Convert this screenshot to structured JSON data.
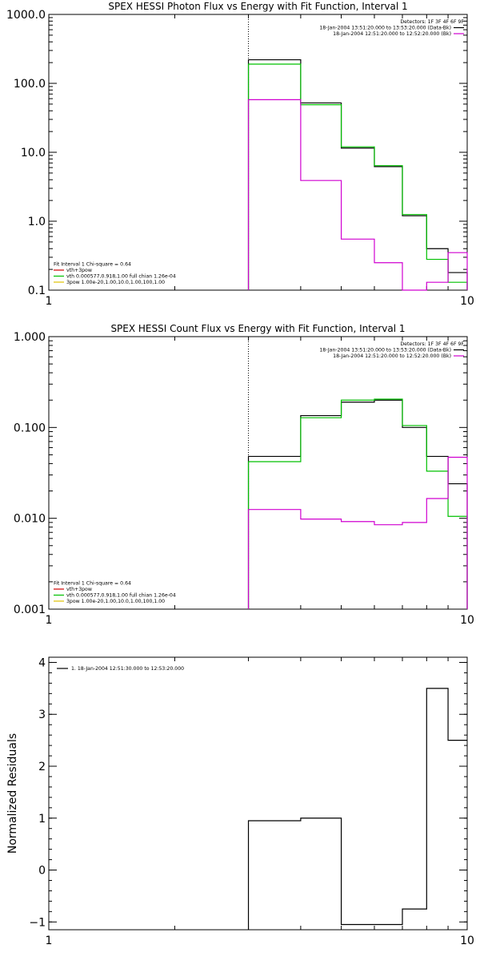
{
  "chart_data": [
    {
      "type": "line",
      "title": "SPEX HESSI Photon Flux vs Energy with Fit Function, Interval 1",
      "xlabel": "",
      "ylabel": "",
      "x_scale": "log",
      "y_scale": "log",
      "xlim": [
        1,
        10
      ],
      "ylim": [
        0.1,
        1000
      ],
      "x_ticks": [
        {
          "v": 1,
          "label": "1"
        },
        {
          "v": 10,
          "label": "10"
        }
      ],
      "y_ticks": [
        {
          "v": 0.1,
          "label": "0.1"
        },
        {
          "v": 1,
          "label": "1.0"
        },
        {
          "v": 10,
          "label": "10.0"
        },
        {
          "v": 100,
          "label": "100.0"
        },
        {
          "v": 1000,
          "label": "1000.0"
        }
      ],
      "marker_x": 3.0,
      "bin_edges": [
        3.0,
        4.0,
        5.0,
        6.0,
        7.0,
        8.0,
        9.0,
        10.0
      ],
      "series": [
        {
          "color": "#000000",
          "values": [
            220,
            52,
            11.5,
            6.2,
            1.2,
            0.4,
            0.18
          ]
        },
        {
          "color": "#00c000",
          "values": [
            190,
            49,
            12,
            6.4,
            1.25,
            0.28,
            0.13
          ]
        },
        {
          "color": "#d000d0",
          "values": [
            58,
            3.9,
            0.55,
            0.25,
            0.1,
            0.13,
            0.35
          ]
        }
      ],
      "legend_top": {
        "lines": [
          {
            "text": "Detectors: 1F 3F 4F 6F 9F",
            "color": null
          },
          {
            "text": "18-Jan-2004 13:51:20.000 to 13:53:20.000 (Data-Bk)",
            "color": "#000000"
          },
          {
            "text": "18-Jan-2004 12:51:20.000 to 12:52:20.000 (Bk)",
            "color": "#d000d0"
          }
        ]
      },
      "legend_bottom": {
        "lines": [
          {
            "text": "Fit Interval 1    Chi-square = 0.64",
            "color": null
          },
          {
            "text": "vth+3pow",
            "color": "#d00000"
          },
          {
            "text": "vth 0.000577,0.918,1.00  full chian 1.26e-04",
            "color": "#00c000"
          },
          {
            "text": "3pow 1.00e-20,1.00,10.0,1.00,100,1.00",
            "color": "#e0c000"
          }
        ]
      }
    },
    {
      "type": "line",
      "title": "SPEX HESSI Count Flux vs Energy with Fit Function, Interval 1",
      "xlabel": "",
      "ylabel": "",
      "x_scale": "log",
      "y_scale": "log",
      "xlim": [
        1,
        10
      ],
      "ylim": [
        0.001,
        1
      ],
      "x_ticks": [
        {
          "v": 1,
          "label": "1"
        },
        {
          "v": 10,
          "label": "10"
        }
      ],
      "y_ticks": [
        {
          "v": 0.001,
          "label": "0.001"
        },
        {
          "v": 0.01,
          "label": "0.010"
        },
        {
          "v": 0.1,
          "label": "0.100"
        },
        {
          "v": 1,
          "label": "1.000"
        }
      ],
      "marker_x": 3.0,
      "bin_edges": [
        3.0,
        4.0,
        5.0,
        6.0,
        7.0,
        8.0,
        9.0,
        10.0
      ],
      "series": [
        {
          "color": "#000000",
          "values": [
            0.048,
            0.135,
            0.19,
            0.2,
            0.1,
            0.048,
            0.024
          ]
        },
        {
          "color": "#00c000",
          "values": [
            0.042,
            0.128,
            0.2,
            0.205,
            0.105,
            0.033,
            0.0105
          ]
        },
        {
          "color": "#d000d0",
          "values": [
            0.0125,
            0.0098,
            0.0092,
            0.0085,
            0.009,
            0.0165,
            0.047
          ]
        }
      ],
      "legend_top": {
        "lines": [
          {
            "text": "Detectors: 1F 3F 4F 6F 9F",
            "color": null
          },
          {
            "text": "18-Jan-2004 13:51:20.000 to 13:53:20.000 (Data-Bk)",
            "color": "#000000"
          },
          {
            "text": "18-Jan-2004 12:51:20.000 to 12:52:20.000 (Bk)",
            "color": "#d000d0"
          }
        ]
      },
      "legend_bottom": {
        "lines": [
          {
            "text": "Fit Interval 1    Chi-square = 0.64",
            "color": null
          },
          {
            "text": "vth+3pow",
            "color": "#d00000"
          },
          {
            "text": "vth 0.000577,0.918,1.00  full chian 1.26e-04",
            "color": "#00c000"
          },
          {
            "text": "3pow 1.00e-20,1.00,10.0,1.00,100,1.00",
            "color": "#e0c000"
          }
        ]
      }
    },
    {
      "type": "line",
      "title": "",
      "xlabel": "",
      "ylabel": "Normalized Residuals",
      "x_scale": "log",
      "y_scale": "linear",
      "xlim": [
        1,
        10
      ],
      "ylim": [
        -1.15,
        4.1
      ],
      "x_ticks": [
        {
          "v": 1,
          "label": "1"
        },
        {
          "v": 10,
          "label": "10"
        }
      ],
      "y_ticks": [
        {
          "v": -1,
          "label": "−1"
        },
        {
          "v": 0,
          "label": "0"
        },
        {
          "v": 1,
          "label": "1"
        },
        {
          "v": 2,
          "label": "2"
        },
        {
          "v": 3,
          "label": "3"
        },
        {
          "v": 4,
          "label": "4"
        }
      ],
      "bin_edges": [
        3.0,
        4.0,
        5.0,
        6.0,
        7.0,
        8.0,
        9.0,
        10.0
      ],
      "series": [
        {
          "color": "#000000",
          "values": [
            0.95,
            1.0,
            -1.05,
            -1.05,
            -0.75,
            3.5,
            2.5
          ]
        }
      ],
      "legend_top": {
        "lines": [
          {
            "text": "1. 18-Jan-2004 12:51:30.000 to 12:53:20.000",
            "color": "#000000"
          }
        ]
      }
    }
  ]
}
